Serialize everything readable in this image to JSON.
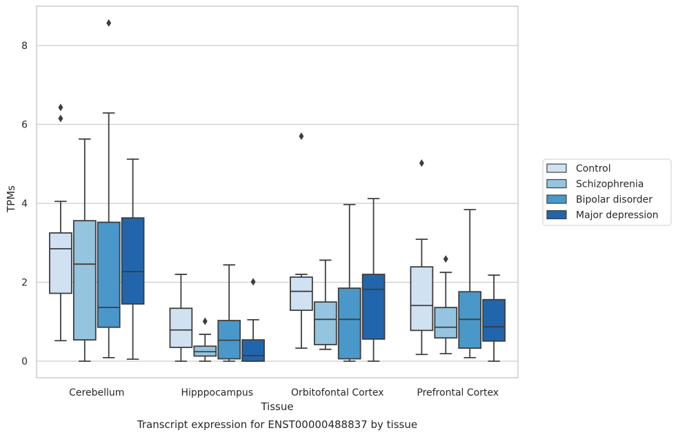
{
  "chart_data": {
    "type": "box",
    "caption": "Transcript expression for ENST00000488837 by tissue",
    "xlabel": "Tissue",
    "ylabel": "TPMs",
    "ylim": [
      -0.4,
      9.0
    ],
    "yticks": [
      0,
      2,
      4,
      6,
      8
    ],
    "grid": "horizontal",
    "legend_position": "right",
    "categories": [
      "Cerebellum",
      "Hipppocampus",
      "Orbitofontal Cortex",
      "Prefrontal Cortex"
    ],
    "series": [
      {
        "name": "Control",
        "color": "#d0e1f2",
        "boxes": [
          {
            "whisker_low": 0.52,
            "q1": 1.72,
            "median": 2.85,
            "q3": 3.25,
            "whisker_high": 4.05,
            "outliers": [
              6.15,
              6.43
            ]
          },
          {
            "whisker_low": 0.0,
            "q1": 0.35,
            "median": 0.79,
            "q3": 1.34,
            "whisker_high": 2.2,
            "outliers": []
          },
          {
            "whisker_low": 0.33,
            "q1": 1.29,
            "median": 1.77,
            "q3": 2.13,
            "whisker_high": 2.2,
            "outliers": [
              5.7
            ]
          },
          {
            "whisker_low": 0.17,
            "q1": 0.78,
            "median": 1.41,
            "q3": 2.39,
            "whisker_high": 3.09,
            "outliers": [
              5.02
            ]
          }
        ]
      },
      {
        "name": "Schizophrenia",
        "color": "#94c4df",
        "boxes": [
          {
            "whisker_low": 0.0,
            "q1": 0.54,
            "median": 2.46,
            "q3": 3.56,
            "whisker_high": 5.63,
            "outliers": []
          },
          {
            "whisker_low": 0.0,
            "q1": 0.13,
            "median": 0.24,
            "q3": 0.38,
            "whisker_high": 0.68,
            "outliers": [
              1.01
            ]
          },
          {
            "whisker_low": 0.3,
            "q1": 0.42,
            "median": 1.06,
            "q3": 1.5,
            "whisker_high": 2.56,
            "outliers": []
          },
          {
            "whisker_low": 0.19,
            "q1": 0.59,
            "median": 0.86,
            "q3": 1.36,
            "whisker_high": 2.25,
            "outliers": [
              2.59
            ]
          }
        ]
      },
      {
        "name": "Bipolar disorder",
        "color": "#4a98c9",
        "boxes": [
          {
            "whisker_low": 0.09,
            "q1": 0.86,
            "median": 1.36,
            "q3": 3.52,
            "whisker_high": 6.29,
            "outliers": [
              8.57
            ]
          },
          {
            "whisker_low": 0.0,
            "q1": 0.06,
            "median": 0.53,
            "q3": 1.03,
            "whisker_high": 2.44,
            "outliers": []
          },
          {
            "whisker_low": 0.0,
            "q1": 0.06,
            "median": 1.06,
            "q3": 1.85,
            "whisker_high": 3.97,
            "outliers": []
          },
          {
            "whisker_low": 0.09,
            "q1": 0.33,
            "median": 1.06,
            "q3": 1.76,
            "whisker_high": 3.84,
            "outliers": []
          }
        ]
      },
      {
        "name": "Major depression",
        "color": "#2166ac",
        "boxes": [
          {
            "whisker_low": 0.05,
            "q1": 1.45,
            "median": 2.27,
            "q3": 3.63,
            "whisker_high": 5.12,
            "outliers": []
          },
          {
            "whisker_low": 0.0,
            "q1": 0.0,
            "median": 0.14,
            "q3": 0.54,
            "whisker_high": 1.05,
            "outliers": [
              2.01
            ]
          },
          {
            "whisker_low": 0.0,
            "q1": 0.56,
            "median": 1.82,
            "q3": 2.2,
            "whisker_high": 4.12,
            "outliers": []
          },
          {
            "whisker_low": 0.0,
            "q1": 0.51,
            "median": 0.87,
            "q3": 1.56,
            "whisker_high": 2.18,
            "outliers": []
          }
        ]
      }
    ]
  },
  "colors": {
    "grid": "#cccccc",
    "line": "#3d3d3d",
    "frame": "#cccccc"
  }
}
